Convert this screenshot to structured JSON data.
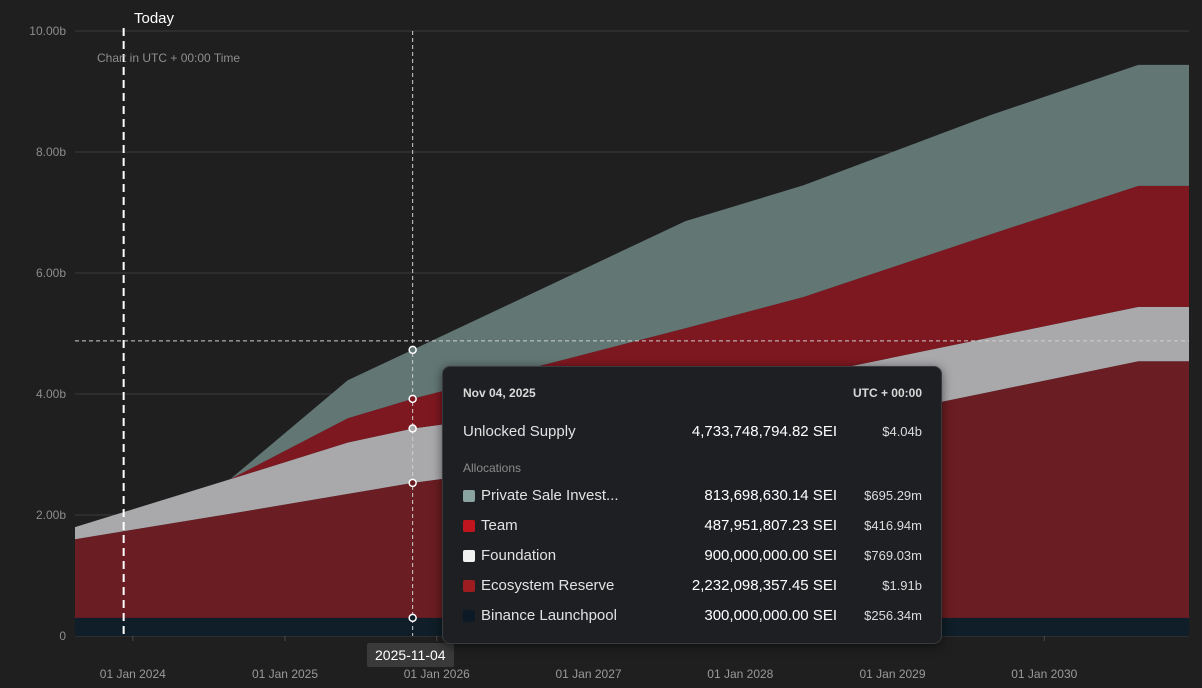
{
  "chart_note": "Chart in UTC + 00:00 Time",
  "today_label": "Today",
  "hover_date_badge": "2025-11-04",
  "chart_data": {
    "type": "area",
    "stacked": true,
    "y_ticks": [
      "0",
      "2.00b",
      "4.00b",
      "6.00b",
      "8.00b",
      "10.00b"
    ],
    "ylim": [
      0,
      10
    ],
    "y_unit": "billion SEI",
    "x_ticks": [
      "01 Jan 2024",
      "01 Jan 2025",
      "01 Jan 2026",
      "01 Jan 2027",
      "01 Jan 2028",
      "01 Jan 2029",
      "01 Jan 2030"
    ],
    "xlim": [
      "2023-08-15",
      "2030-12-15"
    ],
    "today": "2023-12-10",
    "hover_x": "2025-11-04",
    "hover_y": 4.73,
    "grid": true,
    "series": [
      {
        "name": "Binance Launchpool",
        "color": "#0f1e28",
        "points": [
          [
            "2023-08-15",
            0.3
          ],
          [
            "2030-12-15",
            0.3
          ]
        ]
      },
      {
        "name": "Ecosystem Reserve",
        "color": "#6a1d22",
        "points": [
          [
            "2023-08-15",
            1.3
          ],
          [
            "2024-08-22",
            1.72
          ],
          [
            "2025-11-04",
            2.23
          ],
          [
            "2028-06-01",
            3.1
          ],
          [
            "2030-08-15",
            4.24
          ],
          [
            "2030-12-15",
            4.24
          ]
        ]
      },
      {
        "name": "Foundation",
        "color": "#a9a9ac",
        "points": [
          [
            "2023-08-15",
            0.2
          ],
          [
            "2024-08-22",
            0.57
          ],
          [
            "2025-06-01",
            0.85
          ],
          [
            "2025-11-04",
            0.9
          ],
          [
            "2030-08-15",
            0.9
          ],
          [
            "2030-12-15",
            0.9
          ]
        ]
      },
      {
        "name": "Team",
        "color": "#7e1820",
        "points": [
          [
            "2023-08-15",
            0.0
          ],
          [
            "2024-08-22",
            0.0
          ],
          [
            "2025-06-01",
            0.4
          ],
          [
            "2025-11-04",
            0.49
          ],
          [
            "2027-08-22",
            1.05
          ],
          [
            "2029-08-22",
            1.7
          ],
          [
            "2030-08-15",
            2.0
          ],
          [
            "2030-12-15",
            2.0
          ]
        ]
      },
      {
        "name": "Private Sale Investors",
        "color": "#627674",
        "points": [
          [
            "2023-08-15",
            0.0
          ],
          [
            "2024-08-22",
            0.0
          ],
          [
            "2025-06-01",
            0.63
          ],
          [
            "2025-11-04",
            0.81
          ],
          [
            "2027-08-22",
            1.77
          ],
          [
            "2029-08-22",
            1.97
          ],
          [
            "2030-08-15",
            2.0
          ],
          [
            "2030-12-15",
            2.0
          ]
        ]
      }
    ]
  },
  "tooltip": {
    "date": "Nov 04, 2025",
    "timezone": "UTC + 00:00",
    "unlocked": {
      "label": "Unlocked Supply",
      "amount": "4,733,748,794.82 SEI",
      "usd": "$4.04b"
    },
    "allocations_heading": "Allocations",
    "allocations": [
      {
        "label": "Private Sale Invest...",
        "amount": "813,698,630.14 SEI",
        "usd": "$695.29m",
        "color": "#8aa3a1"
      },
      {
        "label": "Team",
        "amount": "487,951,807.23 SEI",
        "usd": "$416.94m",
        "color": "#c0141e"
      },
      {
        "label": "Foundation",
        "amount": "900,000,000.00 SEI",
        "usd": "$769.03m",
        "color": "#f2f2f2"
      },
      {
        "label": "Ecosystem Reserve",
        "amount": "2,232,098,357.45 SEI",
        "usd": "$1.91b",
        "color": "#9c1c1f"
      },
      {
        "label": "Binance Launchpool",
        "amount": "300,000,000.00 SEI",
        "usd": "$256.34m",
        "color": "#0b1a26"
      }
    ]
  }
}
